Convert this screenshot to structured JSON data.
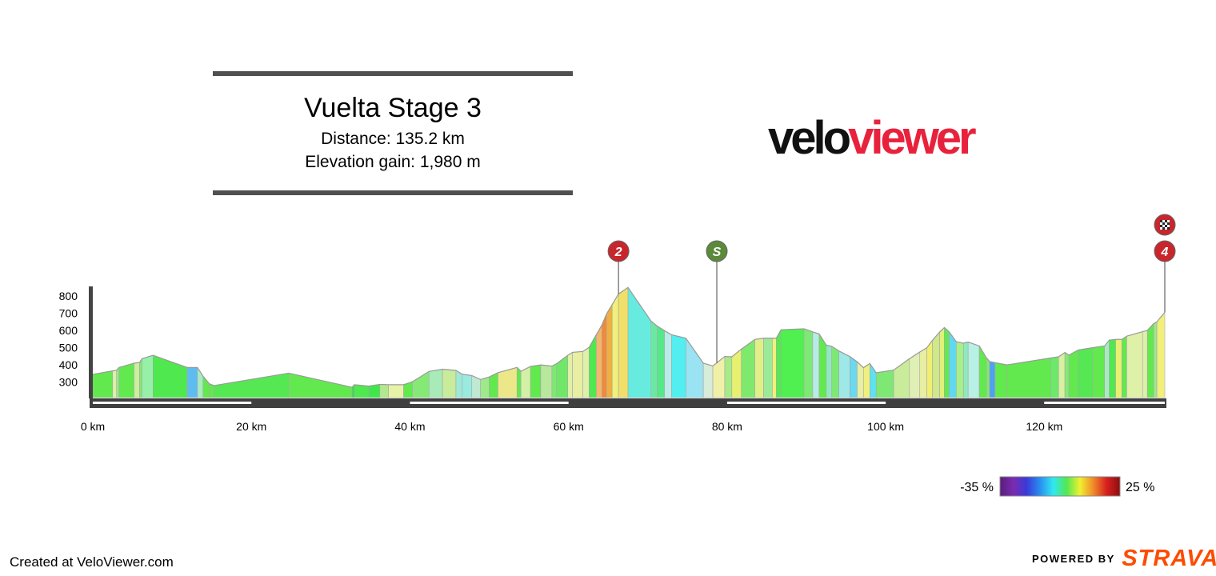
{
  "header": {
    "title": "Vuelta Stage 3",
    "distance": "Distance: 135.2 km",
    "elevation_gain": "Elevation gain: 1,980 m"
  },
  "logo": {
    "part1": "velo",
    "part2": "viewer",
    "part1_color": "#111111",
    "part2_color": "#e8223c"
  },
  "footer": {
    "created": "Created at VeloViewer.com",
    "powered_by": "POWERED BY",
    "strava": "STRAVA",
    "strava_color": "#fc4c02"
  },
  "chart_data": {
    "type": "area",
    "title": "Vuelta Stage 3",
    "xlabel": "",
    "ylabel": "",
    "x_unit": "km",
    "xlim": [
      0,
      135.2
    ],
    "ylim": [
      210,
      870
    ],
    "x_ticks": [
      0,
      20,
      40,
      60,
      80,
      100,
      120
    ],
    "x_tick_labels": [
      "0 km",
      "20 km",
      "40 km",
      "60 km",
      "80 km",
      "100 km",
      "120 km"
    ],
    "y_ticks": [
      300,
      400,
      500,
      600,
      700,
      800
    ],
    "y_tick_labels": [
      "300",
      "400",
      "500",
      "600",
      "700",
      "800"
    ],
    "profile": {
      "distance_km": [
        0,
        2.5,
        3.0,
        3.3,
        5.2,
        5.9,
        6.2,
        7.6,
        11.9,
        13.2,
        13.9,
        14.7,
        15.3,
        24.7,
        32.7,
        33.0,
        34.8,
        36.2,
        37.3,
        39.2,
        40.3,
        42.4,
        44.1,
        45.8,
        46.6,
        47.8,
        48.9,
        50.0,
        51.1,
        53.5,
        54.0,
        55.2,
        56.5,
        57.9,
        58.5,
        59.9,
        60.5,
        61.8,
        62.6,
        63.5,
        64.2,
        64.8,
        65.5,
        66.3,
        67.5,
        70.4,
        71.2,
        72.1,
        73.0,
        74.8,
        77.0,
        78.2,
        79.7,
        80.6,
        81.8,
        83.5,
        84.6,
        85.7,
        86.2,
        86.8,
        89.7,
        90.8,
        91.6,
        92.5,
        93.2,
        94.1,
        95.5,
        96.4,
        97.2,
        98.0,
        98.8,
        101.0,
        103.0,
        104.3,
        105.2,
        105.9,
        106.8,
        107.4,
        108.0,
        108.9,
        109.8,
        110.4,
        111.8,
        112.7,
        113.1,
        113.8,
        115.3,
        120.8,
        121.8,
        122.6,
        123.1,
        124.3,
        126.1,
        127.6,
        128.2,
        129.0,
        129.8,
        130.4,
        132.4,
        133.0,
        133.8,
        134.2,
        135.2
      ],
      "elevation_m": [
        345,
        365,
        368,
        385,
        410,
        414,
        436,
        456,
        385,
        385,
        335,
        290,
        280,
        352,
        270,
        285,
        277,
        287,
        285,
        285,
        302,
        362,
        375,
        368,
        346,
        338,
        315,
        330,
        355,
        385,
        363,
        391,
        400,
        393,
        407,
        456,
        473,
        478,
        502,
        575,
        631,
        697,
        750,
        812,
        850,
        655,
        625,
        599,
        575,
        555,
        410,
        394,
        449,
        447,
        492,
        548,
        555,
        555,
        555,
        604,
        610,
        592,
        580,
        515,
        508,
        481,
        448,
        418,
        384,
        408,
        354,
        370,
        436,
        475,
        500,
        543,
        591,
        617,
        592,
        535,
        526,
        533,
        510,
        441,
        420,
        413,
        400,
        440,
        447,
        472,
        457,
        487,
        500,
        510,
        544,
        548,
        548,
        567,
        593,
        600,
        640,
        650,
        706
      ],
      "segment_colors": [
        "#62e94e",
        "#dff0a8",
        "#9ae98e",
        "#62e94e",
        "#ccef9a",
        "#7fe96e",
        "#96f0a8",
        "#4fe84f",
        "#5fbcf0",
        "#a8ebc0",
        "#62e94e",
        "#62e94e",
        "#55e853",
        "#62e94e",
        "#2ee043",
        "#4fe84f",
        "#3ee84a",
        "#b4e88e",
        "#e7f3a6",
        "#62e94e",
        "#86e976",
        "#a8ebb8",
        "#c8ec9a",
        "#9ce9d8",
        "#9aeadf",
        "#bfe9d2",
        "#9cea8a",
        "#62e94e",
        "#ece88a",
        "#62e94e",
        "#d4f0a6",
        "#62e94e",
        "#b8e89c",
        "#7ee874",
        "#6fe867",
        "#dff0a8",
        "#e8eea2",
        "#dff0a8",
        "#4fe84f",
        "#f2b76a",
        "#f08a3b",
        "#efb040",
        "#f0f07a",
        "#f0e06a",
        "#67ebde",
        "#6be9a2",
        "#54e888",
        "#b7ece8",
        "#52eef0",
        "#9ae3f2",
        "#d7ecd9",
        "#f0f0a8",
        "#a6eb86",
        "#e8f070",
        "#7fe96e",
        "#e0ef86",
        "#9bea98",
        "#f0f07a",
        "#55e853",
        "#4ff04f",
        "#7ee874",
        "#b8eae8",
        "#62e94e",
        "#8fe9bd",
        "#7ee874",
        "#9ee8e8",
        "#6ad8ee",
        "#e8eea2",
        "#f0f080",
        "#5fe1f0",
        "#7ee874",
        "#c8ec9a",
        "#e0f0b4",
        "#e8eea2",
        "#f0f070",
        "#cfe88a",
        "#e0f07a",
        "#62e94e",
        "#62d8f0",
        "#a8f08a",
        "#8fe9bd",
        "#b8f0e6",
        "#62e94e",
        "#7fe96e",
        "#4fa0f0",
        "#62e94e",
        "#62e94e",
        "#6ce96a",
        "#d8f0a0",
        "#86e976",
        "#62e94e",
        "#55e853",
        "#62e94e",
        "#a8ebc0",
        "#4fe84f",
        "#e8f070",
        "#62e94e",
        "#dff0a8",
        "#dff0a8",
        "#62e94e",
        "#9ae98e",
        "#f0f07a"
      ]
    },
    "markers": [
      {
        "type": "climb",
        "label": "2",
        "km": 66.3,
        "color": "#c8262c"
      },
      {
        "type": "sprint",
        "label": "S",
        "km": 78.7,
        "color": "#5a8a3a"
      },
      {
        "type": "climb",
        "label": "4",
        "km": 135.2,
        "color": "#c8262c"
      },
      {
        "type": "finish",
        "label": "",
        "km": 135.2,
        "color": "#c8262c"
      }
    ],
    "gradient_legend": {
      "min_label": "-35 %",
      "max_label": "25 %",
      "colors": [
        "#5a1e7a",
        "#7a2bb0",
        "#3a3ad8",
        "#2a8ef0",
        "#30e8f0",
        "#52e852",
        "#f0f030",
        "#f08a2a",
        "#d81f1f",
        "#8a0f0f"
      ]
    },
    "grid": false
  }
}
